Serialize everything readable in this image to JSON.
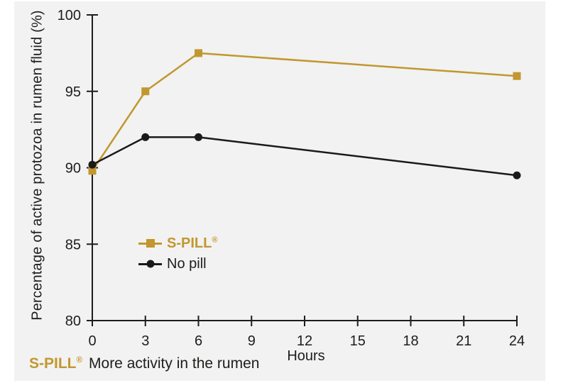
{
  "colors": {
    "gold": "#C2972F",
    "series_black": "#1A1A1A",
    "axis": "#1D1D1B",
    "text": "#1D1D1B",
    "panel_bg": "#F2F2F2"
  },
  "chart_data": {
    "type": "line",
    "x": [
      0,
      3,
      6,
      24
    ],
    "series": [
      {
        "name": "S-PILL®",
        "marker": "square",
        "color": "#C2972F",
        "values": [
          89.8,
          95.0,
          97.5,
          96.0
        ]
      },
      {
        "name": "No pill",
        "marker": "circle",
        "color": "#1A1A1A",
        "values": [
          90.2,
          92.0,
          92.0,
          89.5
        ]
      }
    ],
    "xlabel": "Hours",
    "ylabel": "Percentage of active protozoa in rumen fluid (%)",
    "xticks": [
      0,
      3,
      6,
      9,
      12,
      15,
      18,
      21,
      24
    ],
    "yticks": [
      80,
      85,
      90,
      95,
      100
    ],
    "xlim": [
      0,
      24
    ],
    "ylim": [
      80,
      100
    ],
    "grid": false,
    "legend_position": "inside-left-middle"
  },
  "legend": {
    "items": [
      {
        "text": "S-PILL",
        "sup": "®"
      },
      {
        "text": "No pill"
      }
    ]
  },
  "caption": {
    "brand_text": "S-PILL",
    "brand_sup": "®",
    "text": "More activity in the rumen"
  }
}
